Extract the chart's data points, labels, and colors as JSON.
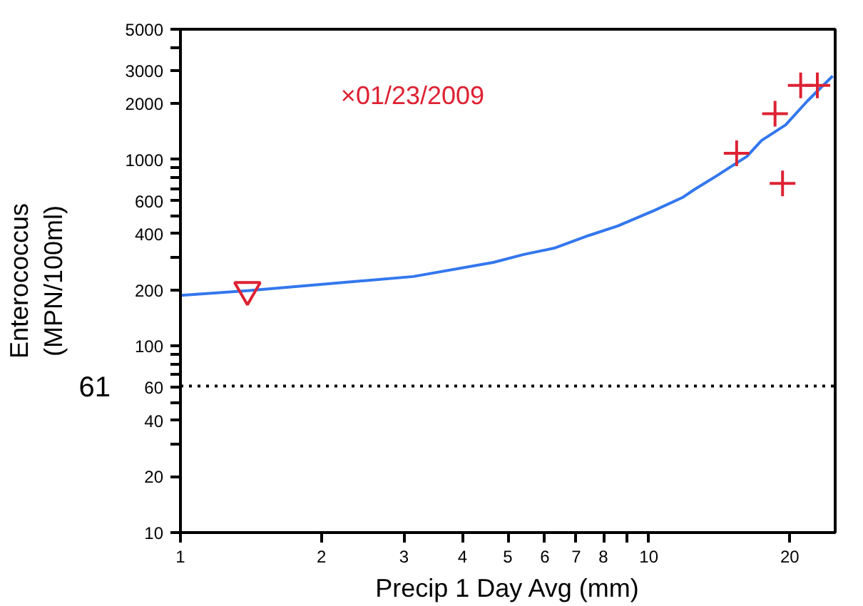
{
  "chart_data": {
    "type": "scatter",
    "xlabel": "Precip 1 Day Avg (mm)",
    "ylabel": "Enterococcus\n(MPN/100ml)",
    "log": "xy",
    "grid": false,
    "xlim": [
      1,
      25
    ],
    "ylim": [
      10,
      5000
    ],
    "xticks": [
      1,
      2,
      3,
      4,
      5,
      6,
      7,
      8,
      {
        "value": 9,
        "label": null
      },
      10,
      20
    ],
    "yticks": [
      10,
      20,
      {
        "value": 30,
        "label": null
      },
      40,
      {
        "value": 50,
        "label": null
      },
      60,
      {
        "value": 70,
        "label": null
      },
      {
        "value": 80,
        "label": null
      },
      {
        "value": 90,
        "label": null
      },
      100,
      200,
      {
        "value": 300,
        "label": null
      },
      400,
      {
        "value": 500,
        "label": null
      },
      600,
      {
        "value": 700,
        "label": null
      },
      {
        "value": 800,
        "label": null
      },
      {
        "value": 900,
        "label": null
      },
      1000,
      2000,
      3000,
      {
        "value": 4000,
        "label": null
      },
      5000
    ],
    "series": [
      {
        "type": "line",
        "color": "#3377ee",
        "marker": "none",
        "line_style": "solid",
        "x": [
          1,
          1.39,
          3.14,
          4.66,
          5.41,
          6.28,
          7.45,
          8.59,
          10.3,
          11.8,
          12.5,
          14.0,
          16.2,
          17.4,
          19.6,
          21.8,
          24.7
        ],
        "values": [
          187,
          198,
          236,
          281,
          310,
          335,
          392,
          441,
          535,
          626,
          690,
          822,
          1040,
          1265,
          1535,
          2060,
          2810
        ]
      },
      {
        "color": "#dd2233",
        "marker": "triangle",
        "x": [
          1.39
        ],
        "values": [
          200
        ]
      },
      {
        "color": "#dd2233",
        "marker": "cross",
        "x": [
          15.4,
          18.6,
          19.3,
          21.1,
          22.9
        ],
        "values": [
          1080,
          1760,
          746,
          2500,
          2500
        ]
      }
    ],
    "ref_lines": [
      {
        "axis": "y",
        "value": 61,
        "label": "61",
        "line_style": "dotted",
        "color": "#000000"
      }
    ],
    "annotations": [
      "×01/23/2009"
    ]
  }
}
